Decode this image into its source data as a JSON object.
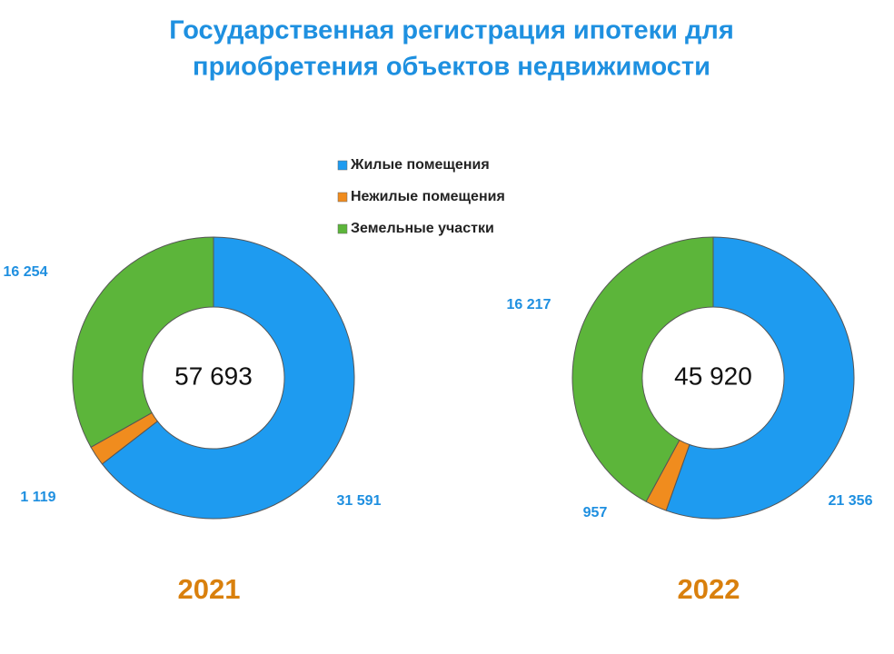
{
  "title": [
    "Государственная регистрация ипотеки для",
    "приобретения объектов недвижимости"
  ],
  "legend": {
    "labels": [
      "Жилые помещения",
      "Нежилые помещения",
      "Земельные участки"
    ],
    "colors": [
      "#1e9bf0",
      "#f08c1e",
      "#5cb53a"
    ]
  },
  "chart_data": [
    {
      "type": "donut",
      "title": "2021",
      "values": [
        31591,
        1119,
        16254
      ],
      "value_labels": [
        "31 591",
        "1 119",
        "16 254"
      ],
      "total": {
        "value": 57693,
        "label": "57 693"
      }
    },
    {
      "type": "donut",
      "title": "2022",
      "values": [
        21356,
        957,
        16217
      ],
      "value_labels": [
        "21 356",
        "957",
        "16 217"
      ],
      "total": {
        "value": 45920,
        "label": "45 920"
      }
    }
  ]
}
